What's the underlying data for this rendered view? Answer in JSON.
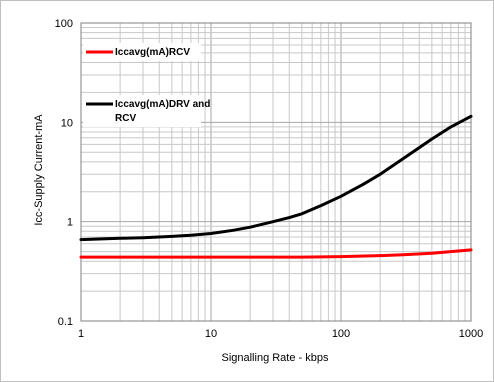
{
  "chart_data": {
    "type": "line",
    "xlabel": "Signalling Rate - kbps",
    "ylabel": "Icc-Supply Current-mA",
    "xscale": "log",
    "yscale": "log",
    "xlim": [
      1,
      1000
    ],
    "ylim": [
      0.1,
      100
    ],
    "x_ticks": [
      "1",
      "10",
      "100",
      "1000"
    ],
    "y_ticks": [
      "0.1",
      "1",
      "10",
      "100"
    ],
    "grid": true,
    "legend_position": "top-left",
    "series": [
      {
        "name": "Iccavg(mA)RCV",
        "legend_lines": [
          "Iccavg(mA)RCV"
        ],
        "color": "#ff0000",
        "x": [
          1,
          2,
          5,
          10,
          20,
          50,
          100,
          200,
          300,
          500,
          700,
          1000
        ],
        "y": [
          0.44,
          0.44,
          0.44,
          0.44,
          0.44,
          0.44,
          0.445,
          0.455,
          0.465,
          0.48,
          0.5,
          0.52
        ]
      },
      {
        "name": "Iccavg(mA)DRV and RCV",
        "legend_lines": [
          "Iccavg(mA)DRV and",
          "RCV"
        ],
        "color": "#000000",
        "x": [
          1,
          2,
          3,
          5,
          7,
          10,
          15,
          20,
          30,
          40,
          50,
          70,
          100,
          150,
          200,
          300,
          500,
          700,
          1000
        ],
        "y": [
          0.66,
          0.68,
          0.69,
          0.71,
          0.73,
          0.76,
          0.82,
          0.88,
          1.0,
          1.1,
          1.2,
          1.45,
          1.8,
          2.4,
          3.0,
          4.3,
          6.8,
          9.0,
          11.5
        ]
      }
    ]
  }
}
